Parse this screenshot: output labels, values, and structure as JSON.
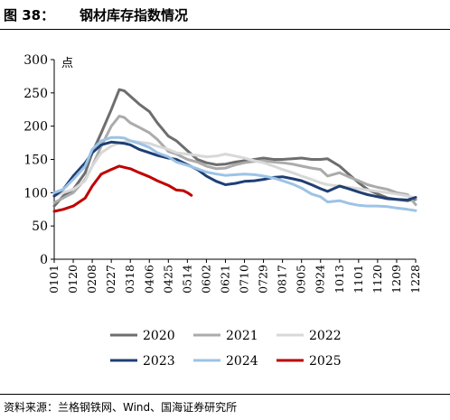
{
  "figure": {
    "label": "图 38：",
    "title": "钢材库存指数情况",
    "source": "资料来源：兰格钢铁网、Wind、国海证券研究所"
  },
  "chart_data": {
    "type": "line",
    "title": "钢材库存指数情况",
    "unit_label": "点",
    "ylim": [
      0,
      300
    ],
    "yticks": [
      0,
      50,
      100,
      150,
      200,
      250,
      300
    ],
    "xlim": [
      "0101",
      "1228"
    ],
    "xtick_labels": [
      "0101",
      "0120",
      "0208",
      "0227",
      "0318",
      "0406",
      "0425",
      "0514",
      "0602",
      "0621",
      "0710",
      "0729",
      "0817",
      "0905",
      "0924",
      "1013",
      "1101",
      "1120",
      "1209",
      "1228"
    ],
    "legend_position": "bottom",
    "grid": false,
    "series": [
      {
        "name": "2020",
        "color": "#6e6e6e",
        "points": [
          [
            "0101",
            80
          ],
          [
            "0110",
            95
          ],
          [
            "0120",
            105
          ],
          [
            "0201",
            130
          ],
          [
            "0208",
            160
          ],
          [
            "0217",
            190
          ],
          [
            "0227",
            225
          ],
          [
            "0307",
            255
          ],
          [
            "0312",
            253
          ],
          [
            "0318",
            245
          ],
          [
            "0327",
            233
          ],
          [
            "0406",
            222
          ],
          [
            "0414",
            205
          ],
          [
            "0425",
            185
          ],
          [
            "0503",
            178
          ],
          [
            "0514",
            163
          ],
          [
            "0524",
            150
          ],
          [
            "0602",
            145
          ],
          [
            "0612",
            142
          ],
          [
            "0621",
            143
          ],
          [
            "0701",
            146
          ],
          [
            "0710",
            148
          ],
          [
            "0720",
            150
          ],
          [
            "0729",
            152
          ],
          [
            "0808",
            150
          ],
          [
            "0817",
            150
          ],
          [
            "0827",
            151
          ],
          [
            "0905",
            152
          ],
          [
            "0915",
            150
          ],
          [
            "0924",
            150
          ],
          [
            "1001",
            151
          ],
          [
            "1013",
            140
          ],
          [
            "1022",
            128
          ],
          [
            "1101",
            115
          ],
          [
            "1110",
            105
          ],
          [
            "1120",
            98
          ],
          [
            "1130",
            92
          ],
          [
            "1209",
            90
          ],
          [
            "1220",
            88
          ],
          [
            "1228",
            90
          ]
        ]
      },
      {
        "name": "2021",
        "color": "#ababab",
        "points": [
          [
            "0101",
            85
          ],
          [
            "0110",
            92
          ],
          [
            "0120",
            100
          ],
          [
            "0201",
            120
          ],
          [
            "0208",
            140
          ],
          [
            "0217",
            170
          ],
          [
            "0227",
            200
          ],
          [
            "0307",
            215
          ],
          [
            "0312",
            213
          ],
          [
            "0318",
            205
          ],
          [
            "0327",
            198
          ],
          [
            "0406",
            190
          ],
          [
            "0414",
            180
          ],
          [
            "0425",
            162
          ],
          [
            "0503",
            158
          ],
          [
            "0514",
            150
          ],
          [
            "0524",
            146
          ],
          [
            "0602",
            140
          ],
          [
            "0612",
            136
          ],
          [
            "0621",
            137
          ],
          [
            "0701",
            142
          ],
          [
            "0710",
            145
          ],
          [
            "0720",
            147
          ],
          [
            "0729",
            148
          ],
          [
            "0808",
            146
          ],
          [
            "0817",
            145
          ],
          [
            "0827",
            143
          ],
          [
            "0905",
            140
          ],
          [
            "0915",
            137
          ],
          [
            "0924",
            135
          ],
          [
            "1001",
            125
          ],
          [
            "1013",
            130
          ],
          [
            "1022",
            124
          ],
          [
            "1101",
            118
          ],
          [
            "1110",
            112
          ],
          [
            "1120",
            108
          ],
          [
            "1130",
            105
          ],
          [
            "1209",
            100
          ],
          [
            "1220",
            97
          ],
          [
            "1228",
            82
          ]
        ]
      },
      {
        "name": "2022",
        "color": "#d8d8d8",
        "points": [
          [
            "0101",
            95
          ],
          [
            "0110",
            100
          ],
          [
            "0120",
            105
          ],
          [
            "0201",
            118
          ],
          [
            "0208",
            140
          ],
          [
            "0217",
            160
          ],
          [
            "0227",
            170
          ],
          [
            "0307",
            175
          ],
          [
            "0312",
            176
          ],
          [
            "0318",
            178
          ],
          [
            "0327",
            176
          ],
          [
            "0406",
            174
          ],
          [
            "0414",
            170
          ],
          [
            "0425",
            165
          ],
          [
            "0503",
            160
          ],
          [
            "0514",
            158
          ],
          [
            "0524",
            156
          ],
          [
            "0602",
            154
          ],
          [
            "0612",
            155
          ],
          [
            "0621",
            158
          ],
          [
            "0701",
            155
          ],
          [
            "0710",
            152
          ],
          [
            "0720",
            148
          ],
          [
            "0729",
            145
          ],
          [
            "0808",
            140
          ],
          [
            "0817",
            135
          ],
          [
            "0827",
            130
          ],
          [
            "0905",
            125
          ],
          [
            "0915",
            120
          ],
          [
            "0924",
            115
          ],
          [
            "1001",
            112
          ],
          [
            "1013",
            110
          ],
          [
            "1022",
            108
          ],
          [
            "1101",
            106
          ],
          [
            "1110",
            104
          ],
          [
            "1120",
            102
          ],
          [
            "1130",
            100
          ],
          [
            "1209",
            98
          ],
          [
            "1220",
            95
          ],
          [
            "1228",
            92
          ]
        ]
      },
      {
        "name": "2023",
        "color": "#1f3f73",
        "points": [
          [
            "0101",
            95
          ],
          [
            "0110",
            105
          ],
          [
            "0120",
            125
          ],
          [
            "0201",
            145
          ],
          [
            "0208",
            160
          ],
          [
            "0217",
            172
          ],
          [
            "0227",
            176
          ],
          [
            "0307",
            175
          ],
          [
            "0312",
            174
          ],
          [
            "0318",
            172
          ],
          [
            "0327",
            165
          ],
          [
            "0406",
            160
          ],
          [
            "0414",
            156
          ],
          [
            "0425",
            152
          ],
          [
            "0503",
            150
          ],
          [
            "0514",
            142
          ],
          [
            "0524",
            135
          ],
          [
            "0602",
            125
          ],
          [
            "0612",
            117
          ],
          [
            "0621",
            112
          ],
          [
            "0701",
            114
          ],
          [
            "0710",
            117
          ],
          [
            "0720",
            118
          ],
          [
            "0729",
            120
          ],
          [
            "0808",
            123
          ],
          [
            "0817",
            124
          ],
          [
            "0827",
            121
          ],
          [
            "0905",
            118
          ],
          [
            "0915",
            112
          ],
          [
            "0924",
            106
          ],
          [
            "1001",
            102
          ],
          [
            "1013",
            110
          ],
          [
            "1022",
            106
          ],
          [
            "1101",
            101
          ],
          [
            "1110",
            97
          ],
          [
            "1120",
            94
          ],
          [
            "1130",
            91
          ],
          [
            "1209",
            90
          ],
          [
            "1220",
            89
          ],
          [
            "1228",
            93
          ]
        ]
      },
      {
        "name": "2024",
        "color": "#9dc3e6",
        "points": [
          [
            "0101",
            100
          ],
          [
            "0110",
            105
          ],
          [
            "0120",
            120
          ],
          [
            "0201",
            140
          ],
          [
            "0208",
            165
          ],
          [
            "0217",
            178
          ],
          [
            "0227",
            183
          ],
          [
            "0307",
            183
          ],
          [
            "0312",
            182
          ],
          [
            "0318",
            178
          ],
          [
            "0327",
            174
          ],
          [
            "0406",
            168
          ],
          [
            "0414",
            160
          ],
          [
            "0425",
            154
          ],
          [
            "0503",
            146
          ],
          [
            "0514",
            141
          ],
          [
            "0524",
            136
          ],
          [
            "0602",
            131
          ],
          [
            "0612",
            128
          ],
          [
            "0621",
            126
          ],
          [
            "0701",
            127
          ],
          [
            "0710",
            128
          ],
          [
            "0720",
            127
          ],
          [
            "0729",
            125
          ],
          [
            "0808",
            122
          ],
          [
            "0817",
            118
          ],
          [
            "0827",
            113
          ],
          [
            "0905",
            107
          ],
          [
            "0915",
            98
          ],
          [
            "0924",
            94
          ],
          [
            "1001",
            86
          ],
          [
            "1013",
            88
          ],
          [
            "1022",
            84
          ],
          [
            "1101",
            81
          ],
          [
            "1110",
            80
          ],
          [
            "1120",
            80
          ],
          [
            "1130",
            79
          ],
          [
            "1209",
            77
          ],
          [
            "1220",
            75
          ],
          [
            "1228",
            73
          ]
        ]
      },
      {
        "name": "2025",
        "color": "#c00000",
        "points": [
          [
            "0101",
            72
          ],
          [
            "0110",
            75
          ],
          [
            "0120",
            80
          ],
          [
            "0201",
            92
          ],
          [
            "0208",
            110
          ],
          [
            "0217",
            128
          ],
          [
            "0227",
            135
          ],
          [
            "0307",
            140
          ],
          [
            "0312",
            138
          ],
          [
            "0318",
            136
          ],
          [
            "0327",
            130
          ],
          [
            "0406",
            124
          ],
          [
            "0414",
            118
          ],
          [
            "0425",
            111
          ],
          [
            "0503",
            104
          ],
          [
            "0510",
            103
          ],
          [
            "0514",
            100
          ],
          [
            "0518",
            96
          ]
        ]
      }
    ]
  }
}
